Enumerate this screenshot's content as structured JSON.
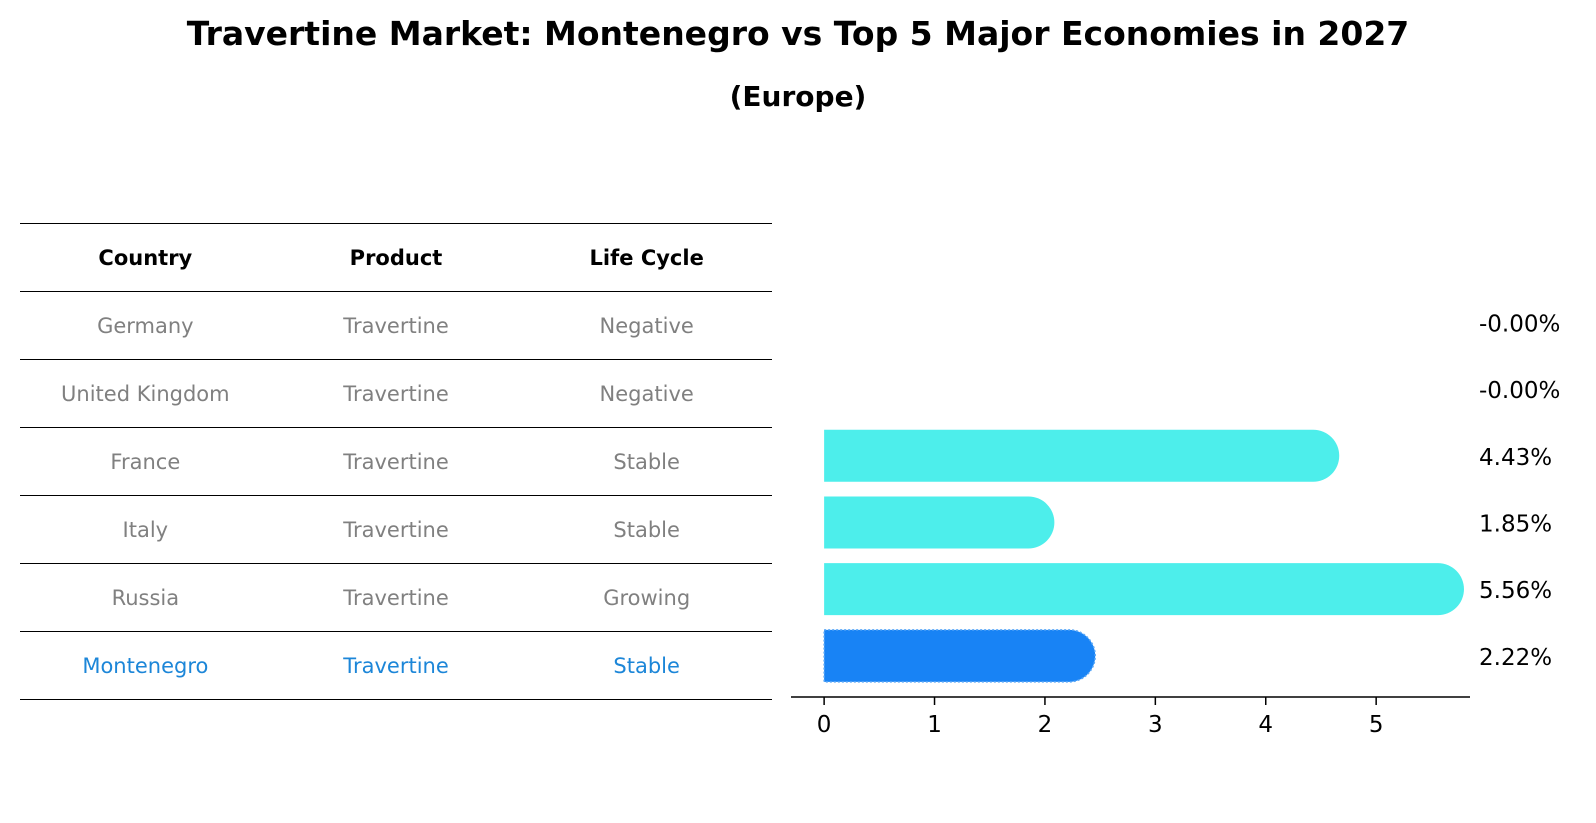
{
  "title": "Travertine Market: Montenegro vs Top 5 Major Economies in 2027",
  "subtitle": "(Europe)",
  "table": {
    "headers": [
      "Country",
      "Product",
      "Life Cycle"
    ],
    "rows": [
      {
        "country": "Germany",
        "product": "Travertine",
        "life_cycle": "Negative",
        "highlight": false
      },
      {
        "country": "United Kingdom",
        "product": "Travertine",
        "life_cycle": "Negative",
        "highlight": false
      },
      {
        "country": "France",
        "product": "Travertine",
        "life_cycle": "Stable",
        "highlight": false
      },
      {
        "country": "Italy",
        "product": "Travertine",
        "life_cycle": "Stable",
        "highlight": false
      },
      {
        "country": "Russia",
        "product": "Travertine",
        "life_cycle": "Growing",
        "highlight": false
      },
      {
        "country": "Montenegro",
        "product": "Travertine",
        "life_cycle": "Stable",
        "highlight": true
      }
    ]
  },
  "colors": {
    "bar": "#4deeeb",
    "highlight_bar": "#1883f5",
    "highlight_text": "#1c86d8",
    "muted_text": "#808080"
  },
  "chart_data": {
    "type": "bar",
    "orientation": "horizontal",
    "categories": [
      "Germany",
      "United Kingdom",
      "France",
      "Italy",
      "Russia",
      "Montenegro"
    ],
    "values": [
      0.0,
      0.0,
      4.43,
      1.85,
      5.56,
      2.22
    ],
    "value_labels": [
      "-0.00%",
      "-0.00%",
      "4.43%",
      "1.85%",
      "5.56%",
      "2.22%"
    ],
    "highlight_index": 5,
    "xlim": [
      -0.3,
      5.85
    ],
    "xticks": [
      0,
      1,
      2,
      3,
      4,
      5
    ],
    "xlabel": "",
    "ylabel": "",
    "grid": false
  }
}
